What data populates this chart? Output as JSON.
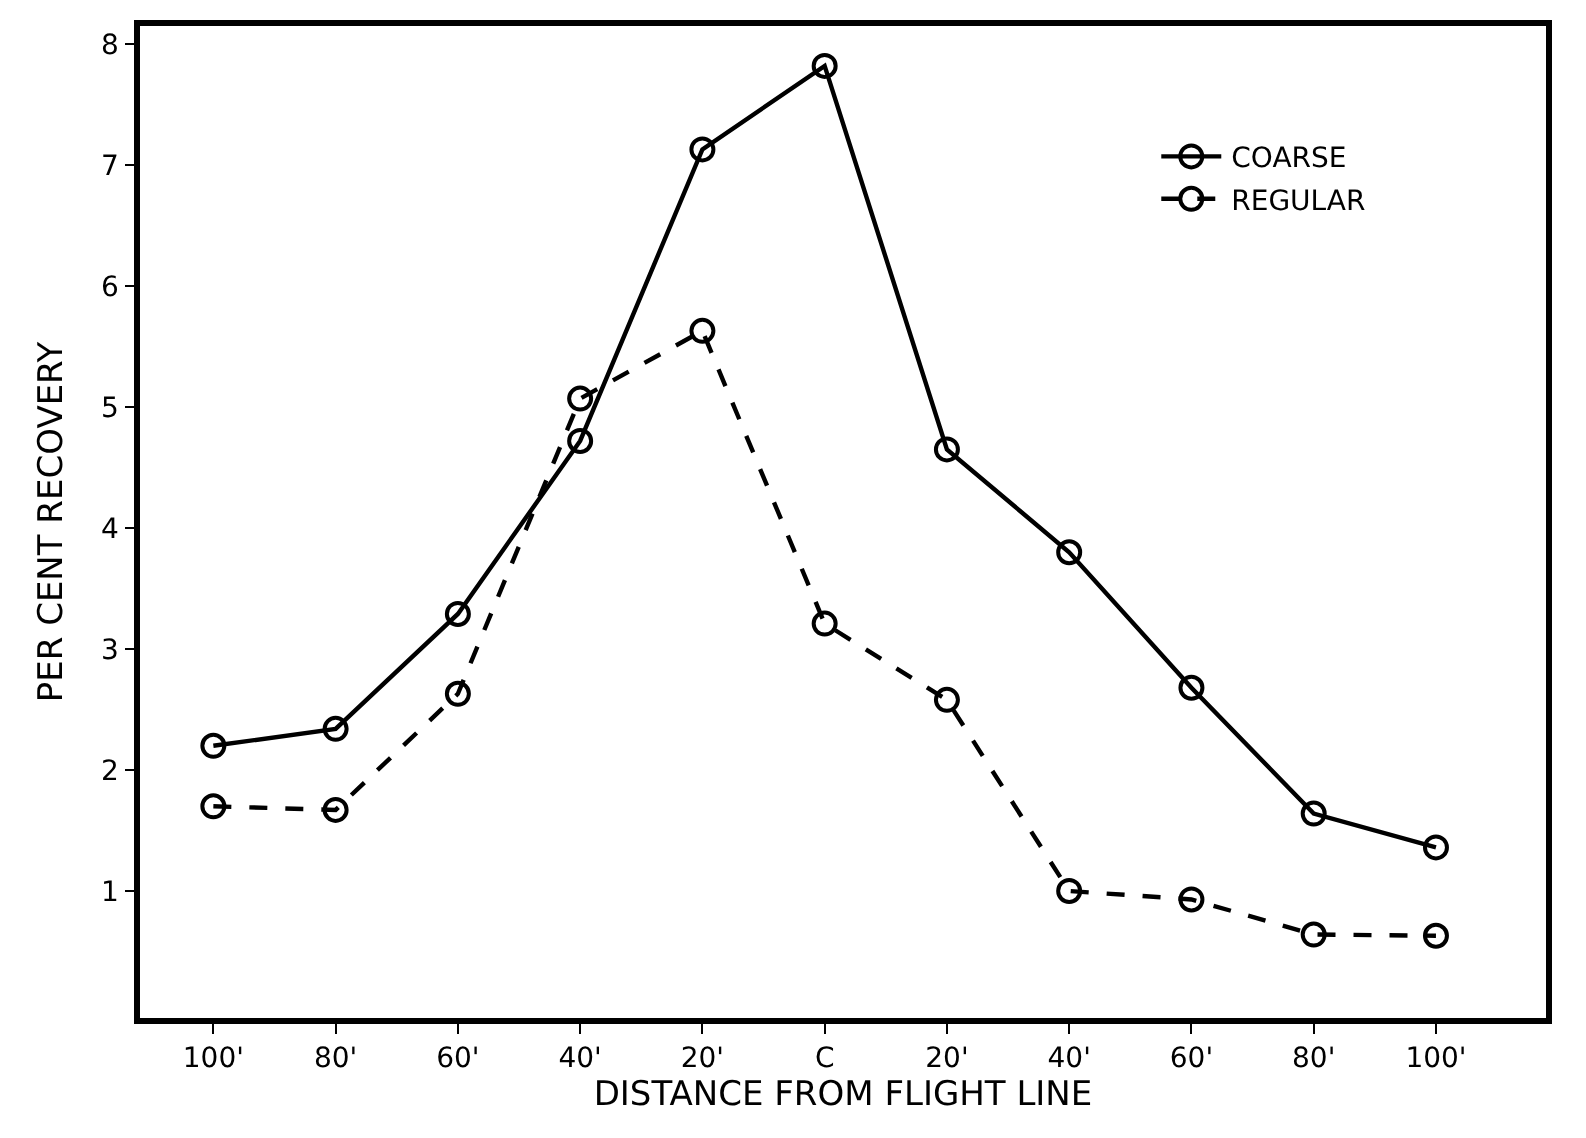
{
  "chart_data": {
    "type": "line",
    "xlabel": "DISTANCE FROM FLIGHT LINE",
    "ylabel": "PER CENT RECOVERY",
    "categories": [
      "100'",
      "80'",
      "60'",
      "40'",
      "20'",
      "C",
      "20'",
      "40'",
      "60'",
      "80'",
      "100'"
    ],
    "series": [
      {
        "name": "COARSE",
        "color": "#000000",
        "line_style": "solid",
        "values": [
          2.2,
          2.34,
          3.29,
          4.72,
          7.13,
          7.82,
          4.65,
          3.8,
          2.68,
          1.64,
          1.36
        ]
      },
      {
        "name": "REGULAR",
        "color": "#000000",
        "line_style": "dashed",
        "values": [
          1.7,
          1.67,
          2.63,
          5.07,
          5.63,
          3.21,
          2.58,
          1.0,
          0.93,
          0.64,
          0.63
        ]
      }
    ],
    "ylim": [
      -0.05,
      8.15
    ],
    "yticks": [
      1,
      2,
      3,
      4,
      5,
      6,
      7,
      8
    ],
    "legend": "top right",
    "marker": "circle"
  }
}
